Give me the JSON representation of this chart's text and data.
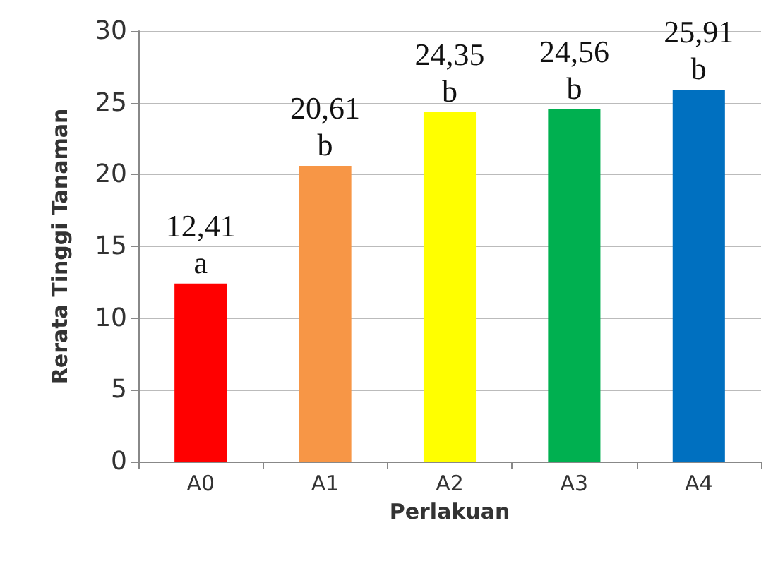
{
  "chart_data": {
    "type": "bar",
    "xlabel": "Perlakuan",
    "ylabel": "Rerata Tinggi Tanaman",
    "categories": [
      "A0",
      "A1",
      "A2",
      "A3",
      "A4"
    ],
    "values": [
      12.41,
      20.61,
      24.35,
      24.56,
      25.91
    ],
    "colors": [
      "#ff0000",
      "#f79646",
      "#ffff00",
      "#00b050",
      "#0070c0"
    ],
    "value_labels": [
      "12,41\na",
      "20,61\nb",
      "24,35\nb",
      "24,56\nb",
      "25,91\nb"
    ],
    "ylim": [
      0,
      30
    ],
    "yticks": [
      0,
      5,
      10,
      15,
      20,
      25,
      30
    ],
    "grid": "y"
  }
}
